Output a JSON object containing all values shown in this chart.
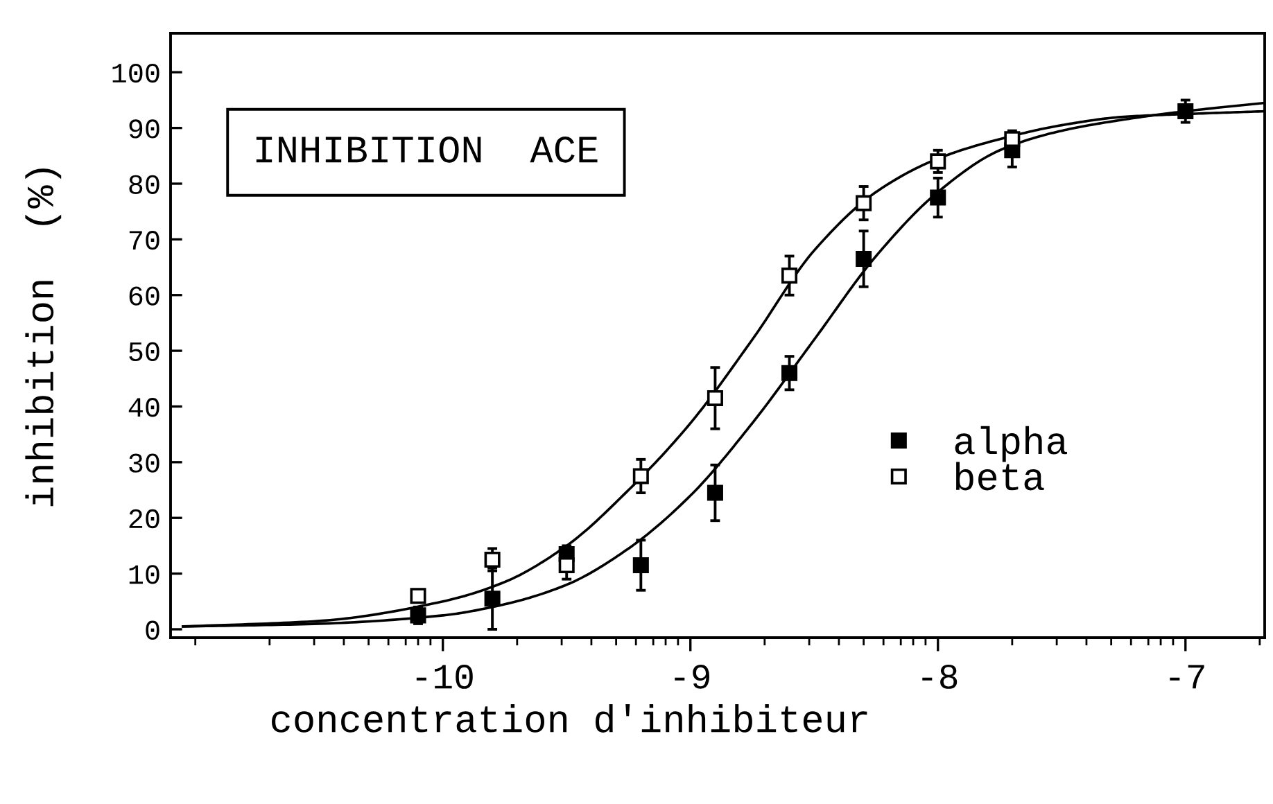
{
  "chart_data": {
    "type": "scatter",
    "title": "INHIBITION  ACE",
    "xlabel": "concentration d'inhibiteur",
    "ylabel": "inhibition  (%)",
    "x": [
      -10.1,
      -9.8,
      -9.5,
      -9.2,
      -8.9,
      -8.6,
      -8.3,
      -8.0,
      -7.7,
      -7.0
    ],
    "series": [
      {
        "type": "line",
        "color": "#000000",
        "marker": "none",
        "line_style": "solid",
        "x": [
          -11.05,
          -10.5,
          -10,
          -9.75,
          -9.5,
          -9.25,
          -9,
          -8.75,
          -8.5,
          -8.25,
          -8,
          -7.75,
          -7.5,
          -7.25,
          -7,
          -6.68
        ],
        "values": [
          0.5,
          1,
          2.5,
          4.5,
          8,
          14.5,
          24,
          37,
          52,
          67,
          78.5,
          86,
          89.5,
          91.5,
          93,
          94.5
        ]
      },
      {
        "type": "line",
        "color": "#000000",
        "marker": "none",
        "line_style": "solid",
        "x": [
          -11.05,
          -10.5,
          -10,
          -9.75,
          -9.5,
          -9.25,
          -9,
          -8.75,
          -8.5,
          -8.25,
          -8,
          -7.75,
          -7.5,
          -7.25,
          -7,
          -6.68
        ],
        "values": [
          0.5,
          1.5,
          5,
          8.5,
          15,
          25,
          37,
          52,
          68,
          78.5,
          84.5,
          88,
          90.5,
          92,
          92.5,
          93
        ]
      },
      {
        "name": "alpha",
        "color": "#000000",
        "marker": "square",
        "values": [
          2.5,
          5.5,
          13.5,
          11.5,
          24.5,
          46,
          66.5,
          77.5,
          86,
          93
        ],
        "errors": [
          1.5,
          5.5,
          1.5,
          4.5,
          5,
          3,
          5,
          3.5,
          3,
          2
        ]
      },
      {
        "name": "beta",
        "color": "#ffffff",
        "marker": "square",
        "values": [
          6,
          12.5,
          11.5,
          27.5,
          41.5,
          63.5,
          76.5,
          84,
          88,
          null
        ],
        "errors": [
          1,
          2,
          2.5,
          3,
          5.5,
          3.5,
          3,
          2,
          1.5,
          null
        ]
      }
    ],
    "xlim": [
      -11.1,
      -6.68
    ],
    "ylim": [
      -1.5,
      107
    ],
    "xticks": [
      {
        "value": -11,
        "label": null
      },
      {
        "value": -10.7,
        "label": null
      },
      {
        "value": -10.52,
        "label": null
      },
      {
        "value": -10.4,
        "label": null
      },
      {
        "value": -10.3,
        "label": null
      },
      {
        "value": -10.22,
        "label": null
      },
      {
        "value": -10.15,
        "label": null
      },
      {
        "value": -10.1,
        "label": null
      },
      {
        "value": -10.05,
        "label": null
      },
      -10,
      {
        "value": -9.7,
        "label": null
      },
      {
        "value": -9.52,
        "label": null
      },
      {
        "value": -9.4,
        "label": null
      },
      {
        "value": -9.3,
        "label": null
      },
      {
        "value": -9.22,
        "label": null
      },
      {
        "value": -9.15,
        "label": null
      },
      {
        "value": -9.1,
        "label": null
      },
      {
        "value": -9.05,
        "label": null
      },
      -9,
      {
        "value": -8.7,
        "label": null
      },
      {
        "value": -8.52,
        "label": null
      },
      {
        "value": -8.4,
        "label": null
      },
      {
        "value": -8.3,
        "label": null
      },
      {
        "value": -8.22,
        "label": null
      },
      {
        "value": -8.15,
        "label": null
      },
      {
        "value": -8.1,
        "label": null
      },
      {
        "value": -8.05,
        "label": null
      },
      -8,
      {
        "value": -7.7,
        "label": null
      },
      {
        "value": -7.52,
        "label": null
      },
      {
        "value": -7.4,
        "label": null
      },
      {
        "value": -7.3,
        "label": null
      },
      {
        "value": -7.22,
        "label": null
      },
      {
        "value": -7.15,
        "label": null
      },
      {
        "value": -7.1,
        "label": null
      },
      {
        "value": -7.05,
        "label": null
      },
      -7,
      {
        "value": -6.7,
        "label": null
      }
    ],
    "yticks": [
      0,
      10,
      20,
      30,
      40,
      50,
      60,
      70,
      80,
      90,
      100
    ],
    "legend": "right"
  }
}
